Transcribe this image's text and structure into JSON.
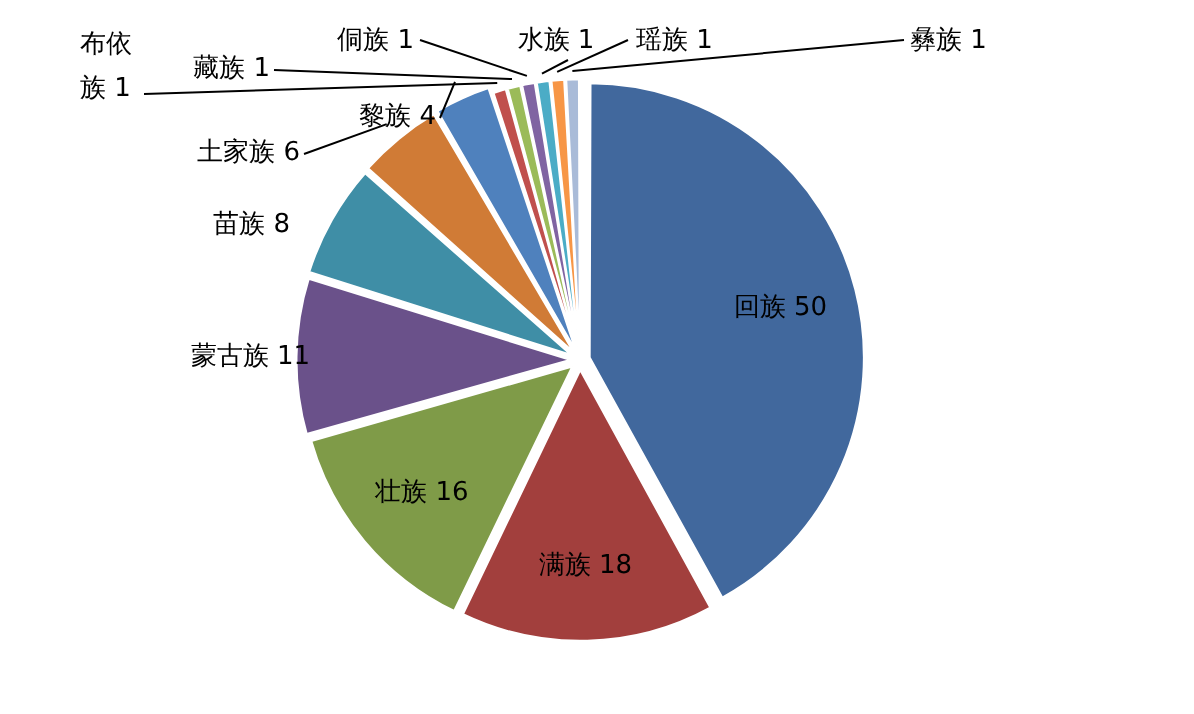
{
  "chart_data": {
    "type": "pie",
    "categories": [
      "回族",
      "满族",
      "壮族",
      "蒙古族",
      "苗族",
      "土家族",
      "黎族",
      "布依族",
      "藏族",
      "侗族",
      "水族",
      "瑶族",
      "彝族"
    ],
    "values": [
      50,
      18,
      16,
      11,
      8,
      6,
      4,
      1,
      1,
      1,
      1,
      1,
      1
    ],
    "colors": [
      "#41689d",
      "#a23f3d",
      "#7f9b48",
      "#6a518a",
      "#3f8ea6",
      "#d07b36",
      "#4f81bd",
      "#c0504d",
      "#9bbb59",
      "#8064a2",
      "#4bacc6",
      "#f79646",
      "#a9bbd8"
    ],
    "data_labels": true,
    "legend": false
  }
}
